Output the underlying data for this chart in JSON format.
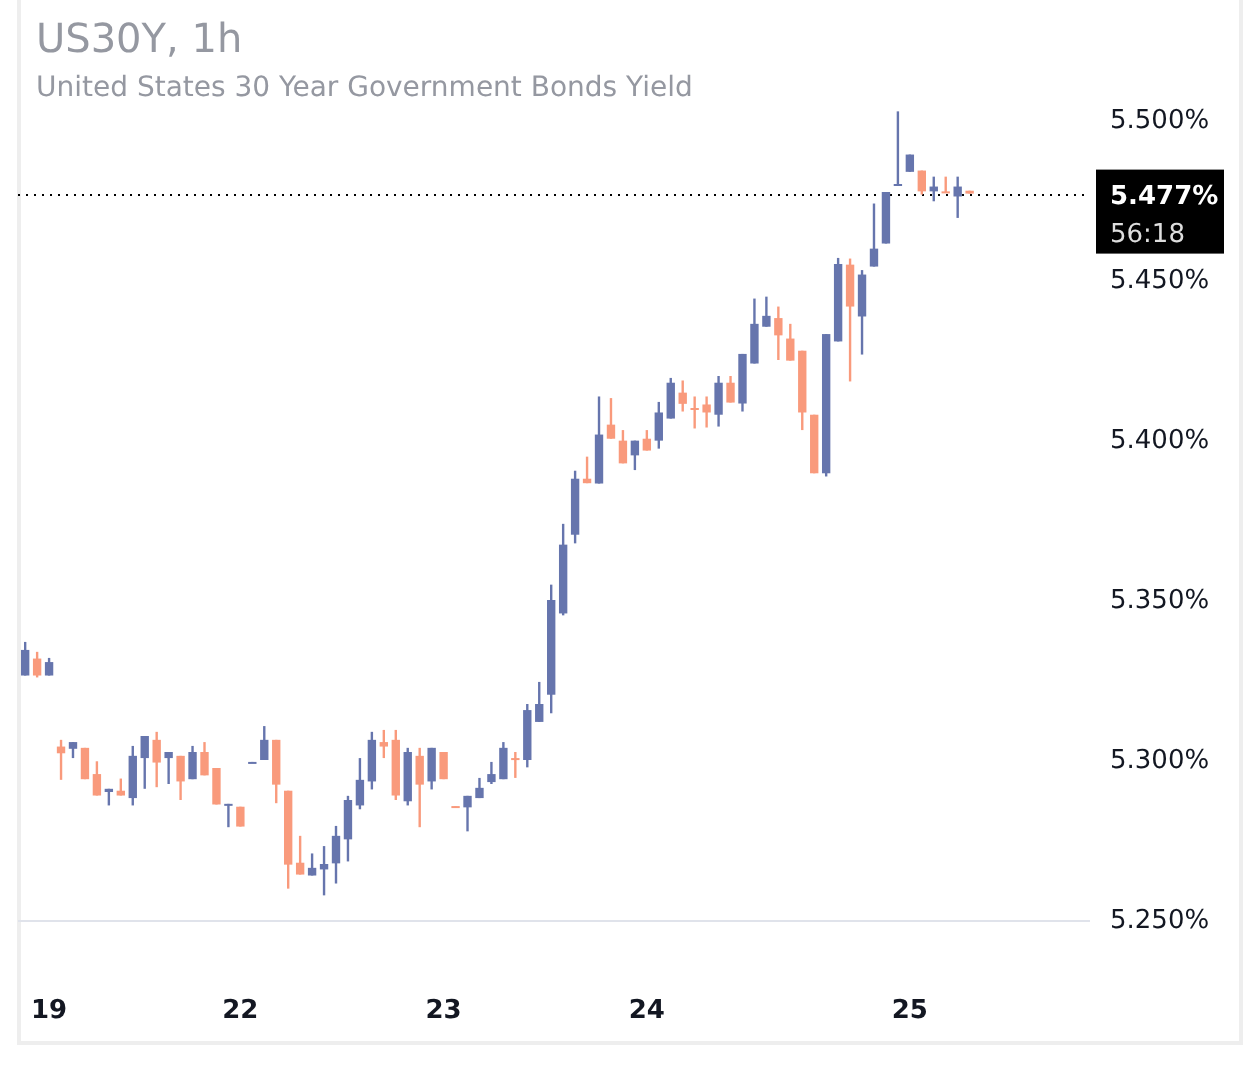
{
  "chart_data": {
    "type": "candlestick",
    "title": "US30Y, 1h",
    "subtitle": "United States 30 Year Government Bonds Yield",
    "categories": [
      null,
      null,
      "19",
      null,
      null,
      null,
      null,
      null,
      null,
      null,
      null,
      null,
      null,
      null,
      null,
      null,
      null,
      null,
      "22",
      null,
      null,
      null,
      null,
      null,
      null,
      null,
      null,
      null,
      null,
      null,
      null,
      null,
      null,
      null,
      null,
      "23",
      null,
      null,
      null,
      null,
      null,
      null,
      null,
      null,
      null,
      null,
      null,
      null,
      null,
      null,
      null,
      null,
      "24",
      null,
      null,
      null,
      null,
      null,
      null,
      null,
      null,
      null,
      null,
      null,
      null,
      null,
      null,
      null,
      null,
      null,
      null,
      null,
      null,
      null,
      "25",
      null,
      null,
      null,
      null,
      null
    ],
    "ohlc": [
      [
        5.3264,
        5.3369,
        5.3264,
        5.3344
      ],
      [
        5.3317,
        5.3338,
        5.3258,
        5.3264
      ],
      [
        5.3264,
        5.3319,
        5.3264,
        5.3306
      ],
      [
        5.3042,
        5.3063,
        5.2938,
        5.3021
      ],
      [
        5.3035,
        5.3056,
        5.3006,
        5.3056
      ],
      [
        5.3038,
        5.3038,
        5.294,
        5.294
      ],
      [
        5.2956,
        5.2996,
        5.2889,
        5.2889
      ],
      [
        5.29,
        5.291,
        5.2858,
        5.291
      ],
      [
        5.2904,
        5.2942,
        5.2889,
        5.2889
      ],
      [
        5.2881,
        5.3044,
        5.2858,
        5.3013
      ],
      [
        5.3006,
        5.3075,
        5.291,
        5.3075
      ],
      [
        5.3063,
        5.3088,
        5.2915,
        5.2992
      ],
      [
        5.3006,
        5.3025,
        5.2925,
        5.3025
      ],
      [
        5.3013,
        5.3013,
        5.2875,
        5.2933
      ],
      [
        5.294,
        5.3044,
        5.294,
        5.3025
      ],
      [
        5.3025,
        5.3056,
        5.2952,
        5.2952
      ],
      [
        5.2975,
        5.2975,
        5.2861,
        5.2861
      ],
      [
        5.2858,
        5.2863,
        5.279,
        5.2863
      ],
      [
        5.2854,
        5.2854,
        5.2792,
        5.2792
      ],
      [
        5.2992,
        5.2994,
        5.2992,
        5.2994
      ],
      [
        5.3,
        5.3106,
        5.3,
        5.3063
      ],
      [
        5.3063,
        5.3063,
        5.2865,
        5.2923
      ],
      [
        5.2904,
        5.2904,
        5.2598,
        5.2673
      ],
      [
        5.2679,
        5.2763,
        5.2642,
        5.2642
      ],
      [
        5.2639,
        5.2708,
        5.2639,
        5.2663
      ],
      [
        5.2658,
        5.2731,
        5.2577,
        5.2675
      ],
      [
        5.2677,
        5.2794,
        5.2614,
        5.2763
      ],
      [
        5.2752,
        5.2888,
        5.2683,
        5.2875
      ],
      [
        5.2858,
        5.3006,
        5.2846,
        5.2938
      ],
      [
        5.2933,
        5.3088,
        5.2908,
        5.3063
      ],
      [
        5.3056,
        5.3094,
        5.3006,
        5.3042
      ],
      [
        5.3063,
        5.3094,
        5.2875,
        5.2889
      ],
      [
        5.2871,
        5.3038,
        5.2858,
        5.3025
      ],
      [
        5.3013,
        5.3038,
        5.279,
        5.2923
      ],
      [
        5.2933,
        5.3038,
        5.2908,
        5.3038
      ],
      [
        5.3025,
        5.3025,
        5.294,
        5.294
      ],
      [
        5.2856,
        5.2856,
        5.2854,
        5.2854
      ],
      [
        5.2852,
        5.2888,
        5.2777,
        5.2888
      ],
      [
        5.2881,
        5.2944,
        5.2881,
        5.2913
      ],
      [
        5.2931,
        5.2994,
        5.2925,
        5.2956
      ],
      [
        5.294,
        5.3056,
        5.294,
        5.3038
      ],
      [
        5.3006,
        5.3025,
        5.2944,
        5.3
      ],
      [
        5.3,
        5.3175,
        5.2977,
        5.3156
      ],
      [
        5.3119,
        5.3244,
        5.3119,
        5.3175
      ],
      [
        5.3204,
        5.3548,
        5.3146,
        5.35
      ],
      [
        5.3458,
        5.3738,
        5.3452,
        5.3673
      ],
      [
        5.3704,
        5.3904,
        5.3677,
        5.3879
      ],
      [
        5.3879,
        5.3948,
        5.3865,
        5.3865
      ],
      [
        5.3864,
        5.4136,
        5.3864,
        5.4017
      ],
      [
        5.4048,
        5.4131,
        5.4004,
        5.4004
      ],
      [
        5.3998,
        5.4031,
        5.3927,
        5.3927
      ],
      [
        5.3952,
        5.3998,
        5.3906,
        5.3998
      ],
      [
        5.4004,
        5.4031,
        5.3967,
        5.3967
      ],
      [
        5.3998,
        5.4119,
        5.3973,
        5.4086
      ],
      [
        5.4067,
        5.4194,
        5.4067,
        5.4179
      ],
      [
        5.4148,
        5.4186,
        5.4089,
        5.4113
      ],
      [
        5.41,
        5.4136,
        5.4036,
        5.4097
      ],
      [
        5.4111,
        5.4136,
        5.4039,
        5.4086
      ],
      [
        5.4079,
        5.42,
        5.4042,
        5.4179
      ],
      [
        5.4179,
        5.42,
        5.4117,
        5.4117
      ],
      [
        5.4114,
        5.4269,
        5.4089,
        5.4269
      ],
      [
        5.4239,
        5.4442,
        5.4239,
        5.4363
      ],
      [
        5.4354,
        5.4448,
        5.4354,
        5.4388
      ],
      [
        5.4381,
        5.4417,
        5.425,
        5.4327
      ],
      [
        5.4317,
        5.4363,
        5.4248,
        5.4248
      ],
      [
        5.4279,
        5.4279,
        5.4031,
        5.4086
      ],
      [
        5.4079,
        5.4079,
        5.3896,
        5.3896
      ],
      [
        5.3896,
        5.4331,
        5.3886,
        5.4331
      ],
      [
        5.4308,
        5.4569,
        5.4308,
        5.455
      ],
      [
        5.4548,
        5.4567,
        5.4183,
        5.4417
      ],
      [
        5.4386,
        5.4531,
        5.4267,
        5.4517
      ],
      [
        5.4542,
        5.4739,
        5.4542,
        5.4598
      ],
      [
        5.4614,
        5.4775,
        5.4614,
        5.4775
      ],
      [
        5.4798,
        5.5027,
        5.4798,
        5.48
      ],
      [
        5.4838,
        5.4892,
        5.4838,
        5.4892
      ],
      [
        5.4842,
        5.4842,
        5.4767,
        5.4777
      ],
      [
        5.4777,
        5.4823,
        5.4746,
        5.4792
      ],
      [
        5.4777,
        5.4823,
        5.4773,
        5.4773
      ],
      [
        5.4761,
        5.4823,
        5.4694,
        5.4792
      ],
      [
        5.4779,
        5.4779,
        5.477,
        5.477
      ]
    ],
    "colors": [
      "#6675ad",
      "#f99a7c",
      "#6675ad",
      "#f99a7c",
      "#6675ad",
      "#f99a7c",
      "#f99a7c",
      "#6675ad",
      "#f99a7c",
      "#6675ad",
      "#6675ad",
      "#f99a7c",
      "#6675ad",
      "#f99a7c",
      "#6675ad",
      "#f99a7c",
      "#f99a7c",
      "#6675ad",
      "#f99a7c",
      "#6675ad",
      "#6675ad",
      "#f99a7c",
      "#f99a7c",
      "#f99a7c",
      "#6675ad",
      "#6675ad",
      "#6675ad",
      "#6675ad",
      "#6675ad",
      "#6675ad",
      "#f99a7c",
      "#f99a7c",
      "#6675ad",
      "#f99a7c",
      "#6675ad",
      "#f99a7c",
      "#f99a7c",
      "#6675ad",
      "#6675ad",
      "#6675ad",
      "#6675ad",
      "#f99a7c",
      "#6675ad",
      "#6675ad",
      "#6675ad",
      "#6675ad",
      "#6675ad",
      "#f99a7c",
      "#6675ad",
      "#f99a7c",
      "#f99a7c",
      "#6675ad",
      "#f99a7c",
      "#6675ad",
      "#6675ad",
      "#f99a7c",
      "#f99a7c",
      "#f99a7c",
      "#6675ad",
      "#f99a7c",
      "#6675ad",
      "#6675ad",
      "#6675ad",
      "#f99a7c",
      "#f99a7c",
      "#f99a7c",
      "#f99a7c",
      "#6675ad",
      "#6675ad",
      "#f99a7c",
      "#6675ad",
      "#6675ad",
      "#6675ad",
      "#6675ad",
      "#6675ad",
      "#f99a7c",
      "#6675ad",
      "#f99a7c",
      "#6675ad",
      "#f99a7c"
    ],
    "ylim": [
      5.25,
      5.5375
    ],
    "yticks": [
      {
        "value": 5.25,
        "label": "5.250%"
      },
      {
        "value": 5.3,
        "label": "5.300%"
      },
      {
        "value": 5.35,
        "label": "5.350%"
      },
      {
        "value": 5.4,
        "label": "5.400%"
      },
      {
        "value": 5.45,
        "label": "5.450%"
      },
      {
        "value": 5.5,
        "label": "5.500%"
      }
    ],
    "ref_lines": [
      {
        "axis": "y",
        "value": 5.477,
        "label": "5.477%",
        "line_style": "dotted",
        "color": "#000000"
      }
    ],
    "annotations": [
      "56:18"
    ],
    "grid": false
  }
}
